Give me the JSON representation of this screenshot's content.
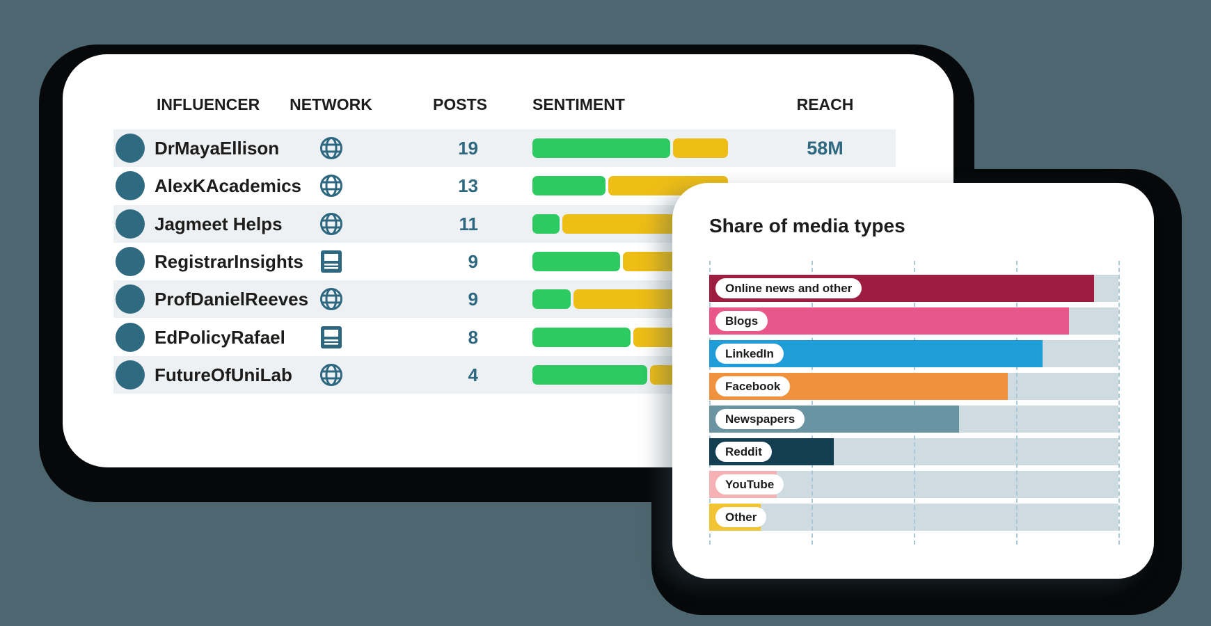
{
  "background_color": "#4d666f",
  "shadow_color": "#060809",
  "table_card": {
    "columns": [
      "INFLUENCER",
      "NETWORK",
      "POSTS",
      "SENTIMENT",
      "REACH"
    ],
    "rows": [
      {
        "influencer": "DrMayaEllison",
        "network_icon": "globe",
        "posts": "19",
        "sentiment_positive_pct": 71.5,
        "reach": "58M"
      },
      {
        "influencer": "AlexKAcademics",
        "network_icon": "globe",
        "posts": "13",
        "sentiment_positive_pct": 38,
        "reach": ""
      },
      {
        "influencer": "Jagmeet Helps",
        "network_icon": "globe",
        "posts": "11",
        "sentiment_positive_pct": 14,
        "reach": ""
      },
      {
        "influencer": "RegistrarInsights",
        "network_icon": "newspaper",
        "posts": "9",
        "sentiment_positive_pct": 45.5,
        "reach": ""
      },
      {
        "influencer": "ProfDanielReeves",
        "network_icon": "globe",
        "posts": "9",
        "sentiment_positive_pct": 20,
        "reach": ""
      },
      {
        "influencer": "EdPolicyRafael",
        "network_icon": "newspaper",
        "posts": "8",
        "sentiment_positive_pct": 51,
        "reach": ""
      },
      {
        "influencer": "FutureOfUniLab",
        "network_icon": "globe",
        "posts": "4",
        "sentiment_positive_pct": 59.5,
        "reach": ""
      }
    ],
    "colors": {
      "stripe": "#edf1f3",
      "accent_teal": "#2d6880",
      "avatar": "#2f6a80",
      "sentiment_positive": "#2dca62",
      "sentiment_negative": "#eebd16",
      "text_dark": "#1d1c1a"
    }
  },
  "chart_data": {
    "type": "bar",
    "orientation": "horizontal",
    "title": "Share of media types",
    "categories": [
      "Online news and other",
      "Blogs",
      "LinkedIn",
      "Facebook",
      "Newspapers",
      "Reddit",
      "YouTube",
      "Other"
    ],
    "values": [
      94,
      88,
      81.5,
      73,
      61,
      30.5,
      16.5,
      12.5
    ],
    "bar_colors": [
      "#9d1c3f",
      "#e8568a",
      "#1f9dd9",
      "#f0923d",
      "#6b94a3",
      "#133e52",
      "#f6b1b4",
      "#f2c434"
    ],
    "xlim": [
      0,
      100
    ],
    "gridlines_pct": [
      0,
      25,
      50,
      75,
      100
    ],
    "grid_on": true,
    "gridline_style": "dashed",
    "gridline_color": "#a9c8d8",
    "track_color": "#cedce2",
    "label_style": "white-pill-inside-bar",
    "legend_position": "none"
  }
}
